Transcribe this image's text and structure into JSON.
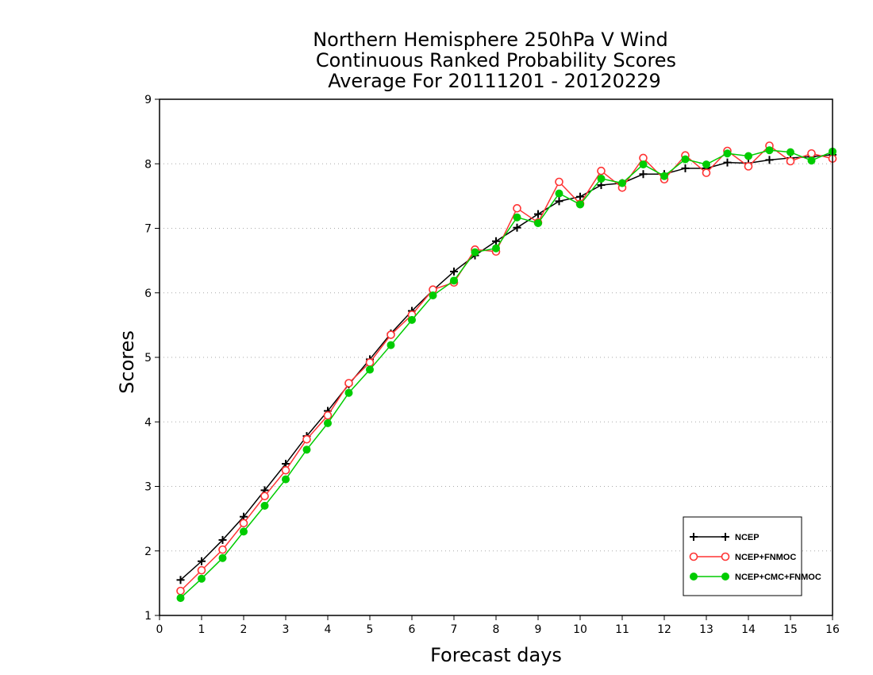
{
  "chart_data": {
    "type": "line",
    "title_lines": [
      "Northern Hemisphere 250hPa V Wind",
      "Continuous Ranked Probability Scores",
      "Average For 20111201 - 20120229"
    ],
    "xlabel": "Forecast days",
    "ylabel": "Scores",
    "xlim": [
      0,
      16
    ],
    "ylim": [
      1,
      9
    ],
    "x_ticks": [
      0,
      1,
      2,
      3,
      4,
      5,
      6,
      7,
      8,
      9,
      10,
      11,
      12,
      13,
      14,
      15,
      16
    ],
    "y_ticks": [
      1,
      2,
      3,
      4,
      5,
      6,
      7,
      8,
      9
    ],
    "grid": "horizontal dotted",
    "legend_position": "bottom-right",
    "x": [
      0.5,
      1,
      1.5,
      2,
      2.5,
      3,
      3.5,
      4,
      4.5,
      5,
      5.5,
      6,
      6.5,
      7,
      7.5,
      8,
      8.5,
      9,
      9.5,
      10,
      10.5,
      11,
      11.5,
      12,
      12.5,
      13,
      13.5,
      14,
      14.5,
      15,
      15.5,
      16
    ],
    "series": [
      {
        "name": "NCEP",
        "color": "#000000",
        "marker": "plus",
        "values": [
          1.55,
          1.84,
          2.17,
          2.53,
          2.94,
          3.35,
          3.78,
          4.17,
          4.58,
          4.97,
          5.37,
          5.72,
          6.04,
          6.33,
          6.58,
          6.8,
          7.01,
          7.22,
          7.42,
          7.49,
          7.67,
          7.7,
          7.84,
          7.84,
          7.93,
          7.93,
          8.02,
          8.01,
          8.06,
          8.09,
          8.11,
          8.14
        ]
      },
      {
        "name": "NCEP+FNMOC",
        "color": "#ff3333",
        "marker": "open-circle",
        "values": [
          1.38,
          1.7,
          2.02,
          2.43,
          2.85,
          3.25,
          3.73,
          4.1,
          4.6,
          4.92,
          5.35,
          5.66,
          6.05,
          6.16,
          6.67,
          6.64,
          7.31,
          7.09,
          7.72,
          7.38,
          7.89,
          7.63,
          8.09,
          7.76,
          8.13,
          7.86,
          8.2,
          7.96,
          8.28,
          8.04,
          8.16,
          8.08
        ]
      },
      {
        "name": "NCEP+CMC+FNMOC",
        "color": "#00cc00",
        "marker": "filled-circle",
        "values": [
          1.27,
          1.57,
          1.89,
          2.3,
          2.7,
          3.11,
          3.57,
          3.98,
          4.45,
          4.81,
          5.19,
          5.58,
          5.96,
          6.19,
          6.63,
          6.69,
          7.17,
          7.08,
          7.54,
          7.37,
          7.77,
          7.7,
          7.99,
          7.81,
          8.07,
          7.99,
          8.16,
          8.12,
          8.21,
          8.18,
          8.05,
          8.19
        ]
      }
    ]
  }
}
